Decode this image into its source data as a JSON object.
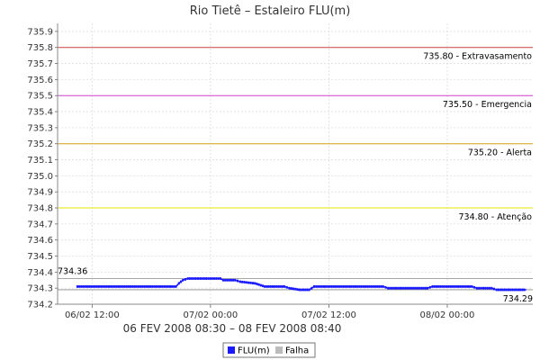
{
  "chart_data": {
    "type": "line",
    "title": "Rio Tietê – Estaleiro FLU(m)",
    "xlabel": "06 FEV 2008 08:30 – 08 FEV 2008 08:40",
    "ylabel": "",
    "ylim": [
      734.2,
      735.95
    ],
    "y_ticks": [
      "734.2",
      "734.3",
      "734.4",
      "734.5",
      "734.6",
      "734.7",
      "734.8",
      "734.9",
      "735.0",
      "735.1",
      "735.2",
      "735.3",
      "735.4",
      "735.5",
      "735.6",
      "735.7",
      "735.8",
      "735.9"
    ],
    "x_ticks": [
      {
        "label": "06/02 12:00",
        "hours": 3.5
      },
      {
        "label": "07/02 00:00",
        "hours": 15.5
      },
      {
        "label": "07/02 12:00",
        "hours": 27.5
      },
      {
        "label": "08/02 00:00",
        "hours": 39.5
      }
    ],
    "xlim_hours": [
      0,
      48.17
    ],
    "grid": true,
    "legend_position": "bottom",
    "thresholds": [
      {
        "label": "735.80 - Extravasamento",
        "value": 735.8,
        "color": "#cc4444"
      },
      {
        "label": "735.50 - Emergencia",
        "value": 735.5,
        "color": "#cc44cc"
      },
      {
        "label": "735.20 - Alerta",
        "value": 735.2,
        "color": "#d4a017"
      },
      {
        "label": "734.80 - Atenção",
        "value": 734.8,
        "color": "#e6e600"
      }
    ],
    "reference_lines": [
      {
        "label": "734.36",
        "value": 734.36,
        "color": "#888888"
      },
      {
        "label": "734.29",
        "value": 734.29,
        "color": "#888888"
      }
    ],
    "series": [
      {
        "name": "FLU(m)",
        "color": "#1a1aff",
        "points": [
          [
            2.0,
            734.31
          ],
          [
            12.0,
            734.31
          ],
          [
            12.3,
            734.33
          ],
          [
            12.7,
            734.35
          ],
          [
            13.2,
            734.36
          ],
          [
            16.5,
            734.36
          ],
          [
            16.8,
            734.35
          ],
          [
            18.0,
            734.35
          ],
          [
            18.5,
            734.34
          ],
          [
            20.0,
            734.33
          ],
          [
            21.0,
            734.31
          ],
          [
            23.0,
            734.31
          ],
          [
            23.5,
            734.3
          ],
          [
            24.5,
            734.29
          ],
          [
            25.5,
            734.29
          ],
          [
            26.0,
            734.31
          ],
          [
            33.0,
            734.31
          ],
          [
            33.5,
            734.3
          ],
          [
            37.5,
            734.3
          ],
          [
            38.0,
            734.31
          ],
          [
            42.0,
            734.31
          ],
          [
            42.5,
            734.3
          ],
          [
            44.0,
            734.3
          ],
          [
            44.5,
            734.29
          ],
          [
            47.5,
            734.29
          ]
        ]
      },
      {
        "name": "Falha",
        "color": "#bbbbbb",
        "points": []
      }
    ]
  }
}
